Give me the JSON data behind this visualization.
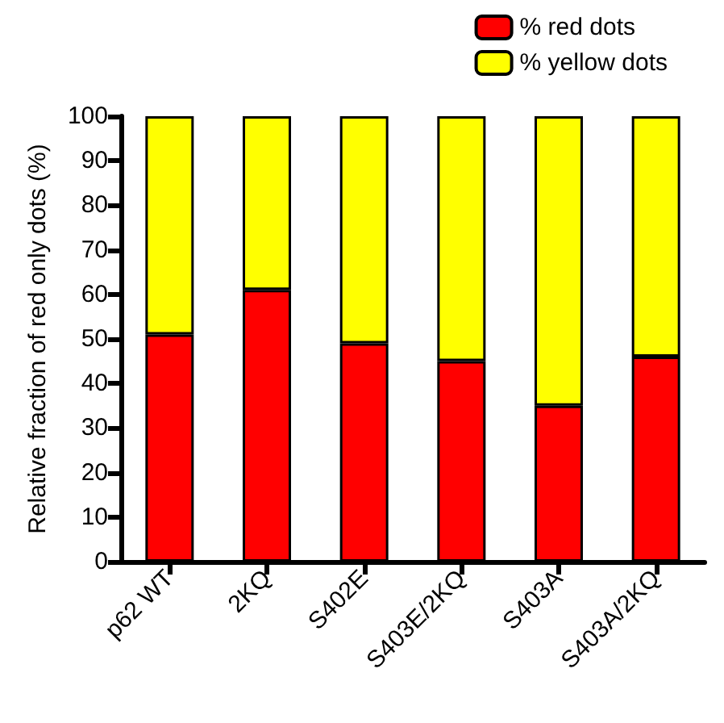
{
  "chart_data": {
    "type": "bar",
    "stacked": true,
    "ylabel": "Relative fraction of red only dots (%)",
    "categories": [
      "p62 WT",
      "2KQ",
      "S402E",
      "S403E/2KQ",
      "S403A",
      "S403A/2KQ"
    ],
    "series": [
      {
        "name": "% red dots",
        "color": "#ff0000",
        "values": [
          51,
          61,
          49,
          45,
          35,
          46
        ]
      },
      {
        "name": "% yellow dots",
        "color": "#ffff00",
        "values": [
          49,
          39,
          51,
          55,
          65,
          54
        ]
      }
    ],
    "ylim": [
      0,
      100
    ],
    "yticks": [
      0,
      10,
      20,
      30,
      40,
      50,
      60,
      70,
      80,
      90,
      100
    ],
    "grid": false,
    "legend": "top right"
  }
}
